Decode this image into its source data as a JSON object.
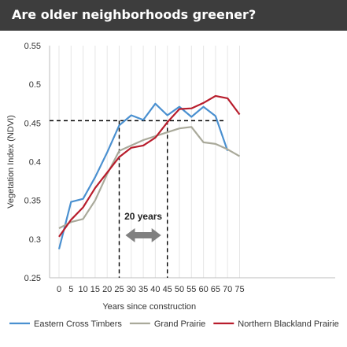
{
  "title": "Are older neighborhoods greener?",
  "chart_data": {
    "type": "line",
    "title": "Are older neighborhoods greener?",
    "xlabel": "Years since construction",
    "ylabel": "Vegetation Index (NDVI)",
    "x": [
      0,
      5,
      10,
      15,
      20,
      25,
      30,
      35,
      40,
      45,
      50,
      55,
      60,
      65,
      70,
      75
    ],
    "x_tick_labels": [
      "0",
      "5",
      "10",
      "15",
      "20",
      "25",
      "30",
      "35",
      "40",
      "45",
      "50",
      "55",
      "60",
      "65",
      "70",
      "75"
    ],
    "y_tick_labels": [
      "0.25",
      "0.3",
      "0.35",
      "0.4",
      "0.45",
      "0.5",
      "0.55"
    ],
    "xlim": [
      0,
      75
    ],
    "ylim": [
      0.25,
      0.55
    ],
    "grid": "vertical",
    "legend_position": "bottom",
    "series": [
      {
        "name": "Eastern Cross Timbers",
        "color": "#4a90d0",
        "values": [
          0.287,
          0.348,
          0.352,
          0.38,
          0.412,
          0.447,
          0.46,
          0.454,
          0.475,
          0.46,
          0.471,
          0.458,
          0.471,
          0.459,
          0.414,
          null
        ]
      },
      {
        "name": "Grand Prairie",
        "color": "#a9a99a",
        "values": [
          0.314,
          0.322,
          0.326,
          0.35,
          0.384,
          0.414,
          0.421,
          0.428,
          0.433,
          0.438,
          0.443,
          0.445,
          0.425,
          0.423,
          0.416,
          0.407
        ]
      },
      {
        "name": "Northern Blackland Prairie",
        "color": "#b81d2c",
        "values": [
          0.303,
          0.325,
          0.341,
          0.366,
          0.386,
          0.406,
          0.418,
          0.421,
          0.431,
          0.451,
          0.468,
          0.469,
          0.476,
          0.485,
          0.482,
          0.461
        ]
      }
    ],
    "annotations": {
      "reference_y": 0.453,
      "span_start_x": 25,
      "span_end_x": 45,
      "span_label": "20 years",
      "line_color": "#000000",
      "arrow_color": "#808080"
    }
  }
}
